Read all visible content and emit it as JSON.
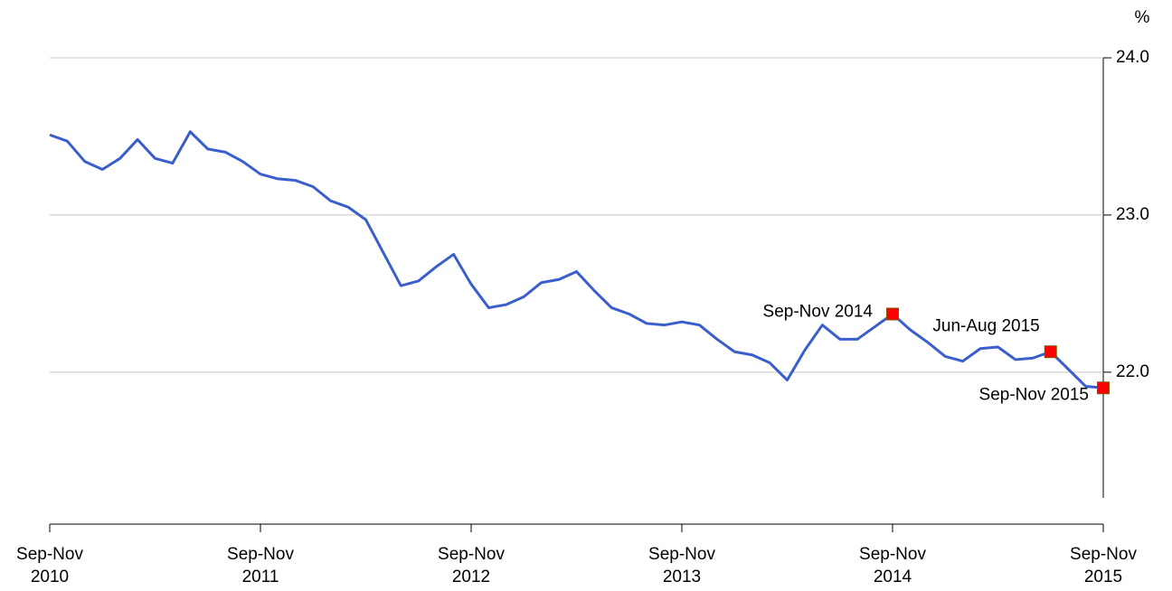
{
  "chart_data": {
    "type": "line",
    "y_axis_label": "%",
    "categories": [
      "Sep-Nov\n2010",
      null,
      null,
      null,
      null,
      null,
      null,
      null,
      null,
      null,
      null,
      null,
      "Sep-Nov\n2011",
      null,
      null,
      null,
      null,
      null,
      null,
      null,
      null,
      null,
      null,
      null,
      "Sep-Nov\n2012",
      null,
      null,
      null,
      null,
      null,
      null,
      null,
      null,
      null,
      null,
      null,
      "Sep-Nov\n2013",
      null,
      null,
      null,
      null,
      null,
      null,
      null,
      null,
      null,
      null,
      null,
      "Sep-Nov\n2014",
      null,
      null,
      null,
      null,
      null,
      null,
      null,
      null,
      null,
      null,
      null,
      "Sep-Nov\n2015"
    ],
    "series": [
      {
        "color": "#3a5fcd",
        "values": [
          23.51,
          23.47,
          23.34,
          23.29,
          23.36,
          23.48,
          23.36,
          23.33,
          23.53,
          23.42,
          23.4,
          23.34,
          23.26,
          23.23,
          23.22,
          23.18,
          23.09,
          23.05,
          22.97,
          22.76,
          22.55,
          22.58,
          22.67,
          22.75,
          22.56,
          22.41,
          22.43,
          22.48,
          22.57,
          22.59,
          22.64,
          22.52,
          22.41,
          22.37,
          22.31,
          22.3,
          22.32,
          22.3,
          22.21,
          22.13,
          22.11,
          22.06,
          21.95,
          22.14,
          22.3,
          22.21,
          22.21,
          22.29,
          22.37,
          22.27,
          22.19,
          22.1,
          22.07,
          22.15,
          22.16,
          22.08,
          22.09,
          22.13,
          22.02,
          21.91,
          21.9
        ]
      }
    ],
    "annotations": [
      {
        "text": "Sep-Nov 2014",
        "index": 48
      },
      {
        "text": "Jun-Aug 2015",
        "index": 57
      },
      {
        "text": "Sep-Nov 2015",
        "index": 60
      }
    ],
    "marker_color": "#ff0000",
    "ylim": [
      21.2,
      24.0
    ],
    "yticks": [
      {
        "value": 22,
        "label": "22.0"
      },
      {
        "value": 23,
        "label": "23.0"
      },
      {
        "value": 24,
        "label": "24.0"
      }
    ],
    "grid": true
  }
}
